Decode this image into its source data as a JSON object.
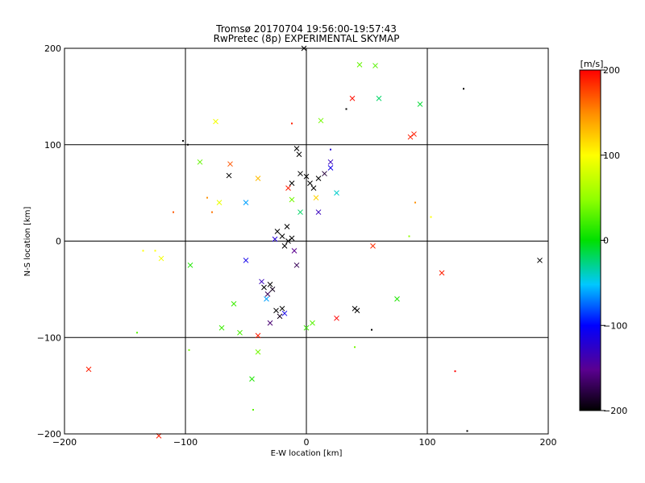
{
  "chart_data": {
    "type": "scatter",
    "title": "Tromsø 20170704 19:56:00-19:57:43",
    "subtitle": "RwPretec (8p) EXPERIMENTAL SKYMAP",
    "xlabel": "E-W location [km]",
    "ylabel": "N-S location [km]",
    "xlim": [
      -200,
      200
    ],
    "ylim": [
      -200,
      200
    ],
    "x_ticks": [
      "−200",
      "−100",
      "0",
      "100",
      "200"
    ],
    "y_ticks": [
      "−200",
      "−100",
      "0",
      "100",
      "200"
    ],
    "grid": true,
    "colorbar": {
      "label": "[m/s]",
      "range": [
        -200,
        200
      ],
      "ticks": [
        "−200",
        "−100",
        "0",
        "100",
        "200"
      ],
      "colormap": "rainbow (black–purple–blue–cyan–green–yellow–red)"
    },
    "points": [
      {
        "x": -180,
        "y": -133,
        "v": 190,
        "m": "x"
      },
      {
        "x": -122,
        "y": -202,
        "v": 190,
        "m": "x"
      },
      {
        "x": -120,
        "y": -18,
        "v": 95,
        "m": "x"
      },
      {
        "x": -96,
        "y": -25,
        "v": 10,
        "m": "x"
      },
      {
        "x": -88,
        "y": 82,
        "v": 35,
        "m": "x"
      },
      {
        "x": -75,
        "y": 124,
        "v": 95,
        "m": "x"
      },
      {
        "x": -72,
        "y": 40,
        "v": 90,
        "m": "x"
      },
      {
        "x": -63,
        "y": 80,
        "v": 170,
        "m": "x"
      },
      {
        "x": -64,
        "y": 68,
        "v": -200,
        "m": "x"
      },
      {
        "x": -70,
        "y": -90,
        "v": 20,
        "m": "x"
      },
      {
        "x": -60,
        "y": -65,
        "v": 20,
        "m": "x"
      },
      {
        "x": -50,
        "y": -20,
        "v": -110,
        "m": "x"
      },
      {
        "x": -55,
        "y": -95,
        "v": 25,
        "m": "x"
      },
      {
        "x": -40,
        "y": -98,
        "v": 190,
        "m": "x"
      },
      {
        "x": -40,
        "y": -115,
        "v": 40,
        "m": "x"
      },
      {
        "x": -45,
        "y": -143,
        "v": 10,
        "m": "x"
      },
      {
        "x": -50,
        "y": 40,
        "v": -60,
        "m": "x"
      },
      {
        "x": -40,
        "y": 65,
        "v": 130,
        "m": "x"
      },
      {
        "x": -37,
        "y": -42,
        "v": -130,
        "m": "x"
      },
      {
        "x": -35,
        "y": -48,
        "v": -200,
        "m": "x"
      },
      {
        "x": -32,
        "y": -55,
        "v": -170,
        "m": "x"
      },
      {
        "x": -30,
        "y": -45,
        "v": -200,
        "m": "x"
      },
      {
        "x": -28,
        "y": -50,
        "v": -190,
        "m": "x"
      },
      {
        "x": -33,
        "y": -60,
        "v": -60,
        "m": "x"
      },
      {
        "x": -25,
        "y": -72,
        "v": -200,
        "m": "x"
      },
      {
        "x": -22,
        "y": -78,
        "v": -190,
        "m": "x"
      },
      {
        "x": -20,
        "y": -70,
        "v": -200,
        "m": "x"
      },
      {
        "x": -18,
        "y": -75,
        "v": -110,
        "m": "x"
      },
      {
        "x": -30,
        "y": -85,
        "v": -160,
        "m": "x"
      },
      {
        "x": -24,
        "y": 10,
        "v": -200,
        "m": "x"
      },
      {
        "x": -20,
        "y": 5,
        "v": -200,
        "m": "x"
      },
      {
        "x": -15,
        "y": 0,
        "v": -200,
        "m": "x"
      },
      {
        "x": -18,
        "y": -5,
        "v": -200,
        "m": "x"
      },
      {
        "x": -12,
        "y": 3,
        "v": -200,
        "m": "x"
      },
      {
        "x": -16,
        "y": 15,
        "v": -200,
        "m": "x"
      },
      {
        "x": -10,
        "y": -10,
        "v": -150,
        "m": "x"
      },
      {
        "x": -26,
        "y": 2,
        "v": -120,
        "m": "x"
      },
      {
        "x": -15,
        "y": 55,
        "v": 190,
        "m": "x"
      },
      {
        "x": -12,
        "y": 60,
        "v": -200,
        "m": "x"
      },
      {
        "x": -8,
        "y": 96,
        "v": -200,
        "m": "x"
      },
      {
        "x": -6,
        "y": 90,
        "v": -200,
        "m": "x"
      },
      {
        "x": -5,
        "y": 70,
        "v": -200,
        "m": "x"
      },
      {
        "x": 0,
        "y": 67,
        "v": -200,
        "m": "x"
      },
      {
        "x": 3,
        "y": 60,
        "v": -200,
        "m": "x"
      },
      {
        "x": 6,
        "y": 55,
        "v": -200,
        "m": "x"
      },
      {
        "x": 10,
        "y": 65,
        "v": -200,
        "m": "x"
      },
      {
        "x": 15,
        "y": 70,
        "v": -180,
        "m": "x"
      },
      {
        "x": 20,
        "y": 76,
        "v": -110,
        "m": "x"
      },
      {
        "x": 20,
        "y": 82,
        "v": -130,
        "m": "x"
      },
      {
        "x": 8,
        "y": 45,
        "v": 120,
        "m": "x"
      },
      {
        "x": -5,
        "y": 30,
        "v": -20,
        "m": "x"
      },
      {
        "x": -12,
        "y": 43,
        "v": 40,
        "m": "x"
      },
      {
        "x": 12,
        "y": 125,
        "v": 40,
        "m": "x"
      },
      {
        "x": 38,
        "y": 148,
        "v": 195,
        "m": "x"
      },
      {
        "x": 44,
        "y": 183,
        "v": 35,
        "m": "x"
      },
      {
        "x": 57,
        "y": 182,
        "v": 30,
        "m": "x"
      },
      {
        "x": 60,
        "y": 148,
        "v": -20,
        "m": "x"
      },
      {
        "x": 94,
        "y": 142,
        "v": -10,
        "m": "x"
      },
      {
        "x": 86,
        "y": 108,
        "v": 190,
        "m": "x"
      },
      {
        "x": 89,
        "y": 111,
        "v": 190,
        "m": "x"
      },
      {
        "x": 55,
        "y": -5,
        "v": 185,
        "m": "x"
      },
      {
        "x": 75,
        "y": -60,
        "v": 10,
        "m": "x"
      },
      {
        "x": 40,
        "y": -70,
        "v": -200,
        "m": "x"
      },
      {
        "x": 42,
        "y": -72,
        "v": -200,
        "m": "x"
      },
      {
        "x": 25,
        "y": -80,
        "v": 200,
        "m": "x"
      },
      {
        "x": 5,
        "y": -85,
        "v": 30,
        "m": "x"
      },
      {
        "x": 0,
        "y": -90,
        "v": 20,
        "m": "x"
      },
      {
        "x": 112,
        "y": -33,
        "v": 190,
        "m": "x"
      },
      {
        "x": 193,
        "y": -20,
        "v": -200,
        "m": "x"
      },
      {
        "x": 10,
        "y": 30,
        "v": -130,
        "m": "x"
      },
      {
        "x": 25,
        "y": 50,
        "v": -40,
        "m": "x"
      },
      {
        "x": -8,
        "y": -25,
        "v": -170,
        "m": "x"
      },
      {
        "x": -2,
        "y": 200,
        "v": -200,
        "m": "x"
      },
      {
        "x": 54,
        "y": -92,
        "v": -200,
        "m": "dot"
      },
      {
        "x": 130,
        "y": 158,
        "v": -200,
        "m": "dot"
      },
      {
        "x": 123,
        "y": -135,
        "v": 200,
        "m": "dot"
      },
      {
        "x": -102,
        "y": 104,
        "v": -200,
        "m": "dot"
      },
      {
        "x": -98,
        "y": 100,
        "v": -200,
        "m": "dot"
      },
      {
        "x": 133,
        "y": -197,
        "v": -200,
        "m": "dot"
      },
      {
        "x": -140,
        "y": -95,
        "v": 30,
        "m": "dot"
      },
      {
        "x": -97,
        "y": -113,
        "v": 40,
        "m": "dot"
      },
      {
        "x": -125,
        "y": -10,
        "v": 100,
        "m": "dot"
      },
      {
        "x": -135,
        "y": -10,
        "v": 100,
        "m": "dot"
      },
      {
        "x": -44,
        "y": -175,
        "v": 30,
        "m": "dot"
      },
      {
        "x": 103,
        "y": 25,
        "v": 100,
        "m": "dot"
      },
      {
        "x": 85,
        "y": 5,
        "v": 50,
        "m": "dot"
      },
      {
        "x": 90,
        "y": 40,
        "v": 150,
        "m": "dot"
      },
      {
        "x": 33,
        "y": 137,
        "v": -200,
        "m": "dot"
      },
      {
        "x": -12,
        "y": 122,
        "v": 190,
        "m": "dot"
      },
      {
        "x": -82,
        "y": 45,
        "v": 150,
        "m": "dot"
      },
      {
        "x": -78,
        "y": 30,
        "v": 160,
        "m": "dot"
      },
      {
        "x": 20,
        "y": 95,
        "v": -120,
        "m": "dot"
      },
      {
        "x": 40,
        "y": -110,
        "v": 40,
        "m": "dot"
      },
      {
        "x": -110,
        "y": 30,
        "v": 170,
        "m": "dot"
      }
    ]
  }
}
